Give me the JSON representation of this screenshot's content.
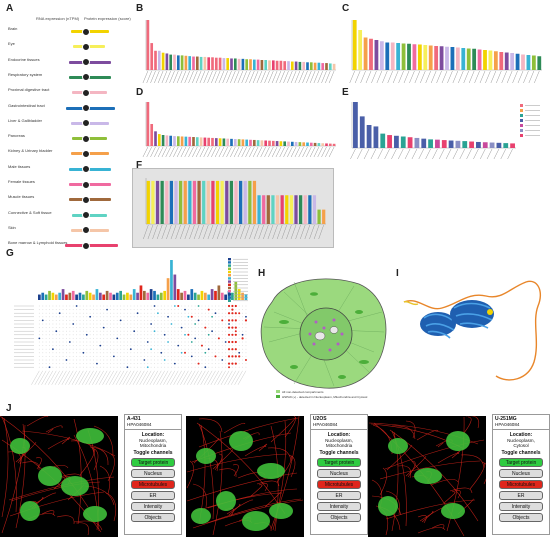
{
  "panels": {
    "A": "A",
    "B": "B",
    "C": "C",
    "D": "D",
    "E": "E",
    "F": "F",
    "G": "G",
    "H": "H",
    "I": "I",
    "J": "J"
  },
  "panel_a": {
    "header_rna": "RNA expression (nTPM)",
    "header_protein": "Protein expression (score)",
    "tissues": [
      {
        "label": "Brain",
        "color": "#f2d300",
        "rna": 0.55
      },
      {
        "label": "Eye",
        "color": "#f6ef5a",
        "rna": 0.45
      },
      {
        "label": "Endocrine tissues",
        "color": "#7d4c9e",
        "rna": 0.6
      },
      {
        "label": "Respiratory system",
        "color": "#2e8b57",
        "rna": 0.6
      },
      {
        "label": "Proximal digestive tract",
        "color": "#f4b6c2",
        "rna": 0.5
      },
      {
        "label": "Gastrointestinal tract",
        "color": "#1c6fb8",
        "rna": 0.7
      },
      {
        "label": "Liver & Gallbladder",
        "color": "#c9b8e8",
        "rna": 0.55
      },
      {
        "label": "Pancreas",
        "color": "#8fbf3a",
        "rna": 0.5
      },
      {
        "label": "Kidney & Urinary bladder",
        "color": "#f5a04a",
        "rna": 0.55
      },
      {
        "label": "Male tissues",
        "color": "#38b3d4",
        "rna": 0.6
      },
      {
        "label": "Female tissues",
        "color": "#f06aa0",
        "rna": 0.6
      },
      {
        "label": "Muscle tissues",
        "color": "#a0693c",
        "rna": 0.6
      },
      {
        "label": "Connective & Soft tissue",
        "color": "#5fd3c3",
        "rna": 0.5
      },
      {
        "label": "Skin",
        "color": "#f5c6a8",
        "rna": 0.55
      },
      {
        "label": "Bone marrow & Lymphoid tissues",
        "color": "#e8416e",
        "rna": 0.75
      }
    ]
  },
  "chart_data": [
    {
      "panel": "B",
      "type": "bar",
      "values": [
        13,
        7,
        5,
        5,
        4.5,
        4.3,
        4,
        4,
        3.8,
        3.8,
        3.7,
        3.6,
        3.5,
        3.5,
        3.4,
        3.4,
        3.3,
        3.3,
        3.2,
        3.2,
        3.1,
        3.1,
        3,
        3,
        2.9,
        2.9,
        2.8,
        2.8,
        2.7,
        2.7,
        2.6,
        2.6,
        2.5,
        2.5,
        2.4,
        2.4,
        2.3,
        2.3,
        2.2,
        2.2,
        2.1,
        2.1,
        2,
        2,
        1.9,
        1.9,
        1.8,
        1.8,
        1.7,
        1.6
      ],
      "colors": [
        "#f06a7c",
        "#f06a7c",
        "#f06a7c",
        "#c9b8e8",
        "#f2d300",
        "#7d4c9e",
        "#2e8b57",
        "#f4b6c2",
        "#1c6fb8",
        "#8fbf3a",
        "#f5a04a",
        "#38b3d4",
        "#f06aa0",
        "#a0693c",
        "#5fd3c3",
        "#f5c6a8",
        "#e8416e"
      ]
    },
    {
      "panel": "C",
      "type": "bar",
      "values": [
        20,
        16,
        13,
        12.5,
        12,
        11.5,
        11,
        11,
        10.8,
        10.6,
        10.5,
        10.3,
        10.2,
        10,
        9.8,
        9.6,
        9.5,
        9.3,
        9.2,
        9,
        8.8,
        8.6,
        8.5,
        8.2,
        8,
        7.8,
        7.5,
        7.2,
        7,
        6.8,
        6.5,
        6.2,
        6,
        5.8,
        5.5
      ],
      "colors": [
        "#f2d300",
        "#f6ef5a",
        "#f5a04a",
        "#f06a7c",
        "#7d4c9e",
        "#c9b8e8",
        "#1c6fb8",
        "#f4b6c2",
        "#38b3d4",
        "#8fbf3a",
        "#2e8b57",
        "#f06aa0"
      ]
    },
    {
      "panel": "D",
      "type": "bar",
      "values": [
        24,
        12,
        8,
        6.5,
        6,
        5.8,
        5.6,
        5.4,
        5.3,
        5.2,
        5.1,
        5,
        4.9,
        4.8,
        4.7,
        4.6,
        4.5,
        4.4,
        4.3,
        4.2,
        4.1,
        4,
        3.9,
        3.8,
        3.7,
        3.6,
        3.5,
        3.4,
        3.3,
        3.2,
        3.1,
        3,
        2.9,
        2.8,
        2.7,
        2.6,
        2.5,
        2.4,
        2.3,
        2.2,
        2.1,
        2,
        1.9,
        1.8,
        1.7,
        1.6,
        1.5,
        1.4,
        1.3,
        1.2
      ],
      "colors": [
        "#f06a7c",
        "#f06a7c",
        "#7d4c9e",
        "#f2d300",
        "#2e8b57",
        "#f4b6c2",
        "#1c6fb8",
        "#c9b8e8",
        "#8fbf3a",
        "#f5a04a",
        "#38b3d4",
        "#f06aa0",
        "#a0693c",
        "#5fd3c3",
        "#f5c6a8",
        "#e8416e"
      ]
    },
    {
      "panel": "E",
      "type": "bar",
      "values": [
        32,
        22,
        16,
        15,
        10,
        9,
        8.5,
        8,
        7.5,
        7,
        6.5,
        6,
        5.8,
        5.5,
        5.2,
        5,
        4.8,
        4.5,
        4.2,
        4,
        3.8,
        3.6,
        3.4,
        3.2
      ],
      "colors": [
        "#4a5fa8",
        "#4a5fa8",
        "#4a5fa8",
        "#4a5fa8",
        "#2aa394",
        "#e8416e",
        "#4a5fa8",
        "#2aa394",
        "#e8416e",
        "#8a8fc4",
        "#4a5fa8",
        "#2aa394",
        "#c94a9c",
        "#e8416e",
        "#4a5fa8",
        "#8a8fc4",
        "#2aa394",
        "#e8416e",
        "#4a5fa8",
        "#c94a9c",
        "#8a8fc4",
        "#4a5fa8",
        "#2aa394",
        "#e8416e"
      ],
      "legend_colors": [
        "#f06a7c",
        "#f5a04a",
        "#2aa394",
        "#4a5fa8",
        "#c94a9c",
        "#8a8fc4",
        "#e8416e"
      ]
    },
    {
      "panel": "F",
      "type": "bar",
      "values": [
        3,
        3,
        3,
        3,
        3,
        3,
        3,
        3,
        3,
        3,
        3,
        3,
        3,
        3,
        3,
        3,
        3,
        3,
        3,
        3,
        3,
        3,
        3,
        3,
        2,
        2,
        2,
        2,
        2,
        2,
        2,
        2,
        2,
        2,
        2,
        2,
        2,
        1,
        1
      ],
      "colors": [
        "#f2d300",
        "#f6ef5a",
        "#7d4c9e",
        "#2e8b57",
        "#f4b6c2",
        "#1c6fb8",
        "#c9b8e8",
        "#8fbf3a",
        "#f5a04a",
        "#38b3d4",
        "#f06aa0",
        "#a0693c",
        "#5fd3c3",
        "#f5c6a8",
        "#e8416e"
      ]
    },
    {
      "panel": "G",
      "type": "bar",
      "values": [
        3,
        4,
        3,
        5,
        4,
        3,
        4,
        6,
        3,
        4,
        5,
        3,
        4,
        3,
        5,
        4,
        3,
        6,
        4,
        3,
        5,
        4,
        3,
        4,
        5,
        3,
        4,
        3,
        6,
        4,
        8,
        5,
        4,
        6,
        5,
        3,
        4,
        5,
        12,
        22,
        14,
        6,
        4,
        5,
        3,
        6,
        4,
        3,
        5,
        4,
        3,
        6,
        5,
        8,
        4,
        3,
        5,
        4,
        10,
        6,
        4,
        3
      ],
      "colors": [
        "#1c3f8c",
        "#1c6fb8",
        "#2aa394",
        "#8fbf3a",
        "#f2d300",
        "#f5a04a",
        "#38b3d4",
        "#7d4c9e",
        "#e0261c",
        "#a0693c",
        "#f06aa0"
      ]
    }
  ],
  "panel_h": {
    "legend_1": "All non-detected compartments",
    "legend_2": "HSPA9 (+) - detected in Nucleoplasm, Mitochondria and Cytosol"
  },
  "panel_j": [
    {
      "cell_line": "A-431",
      "antibody": "HPA046084",
      "location_header": "Location:",
      "location_values": [
        "Nucleoplasm,",
        "Mitochondria"
      ]
    },
    {
      "cell_line": "U2OS",
      "antibody": "HPA046084",
      "location_header": "Location:",
      "location_values": [
        "Nucleoplasm,",
        "Mitochondria"
      ]
    },
    {
      "cell_line": "U-251MG",
      "antibody": "HPA046084",
      "location_header": "Location:",
      "location_values": [
        "Nucleoplasm,",
        "Cytosol"
      ]
    }
  ],
  "panel_j_toggle": {
    "header": "Toggle channels",
    "target_protein": "Target protein",
    "nucleus": "Nucleus",
    "microtubules": "Microtubules",
    "er": "ER",
    "intensity": "Intensity",
    "objects": "Objects"
  },
  "colors": {
    "cell_green": "#5fcf4a",
    "target_green": "#2ecc40",
    "micro_red": "#e0261c"
  }
}
